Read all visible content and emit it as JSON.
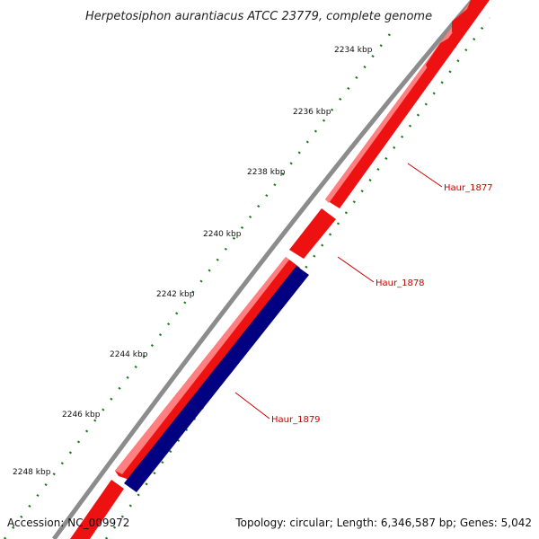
{
  "title": "Herpetosiphon aurantiacus ATCC 23779, complete genome",
  "ticks": [
    {
      "label": "2234 kbp"
    },
    {
      "label": "2236 kbp"
    },
    {
      "label": "2238 kbp"
    },
    {
      "label": "2240 kbp"
    },
    {
      "label": "2242 kbp"
    },
    {
      "label": "2244 kbp"
    },
    {
      "label": "2246 kbp"
    },
    {
      "label": "2248 kbp"
    }
  ],
  "genes": [
    {
      "name": "Haur_1877",
      "strand": "+",
      "color": "#ee1111"
    },
    {
      "name": "Haur_1878",
      "strand": "+",
      "color": "#ee1111"
    },
    {
      "name": "Haur_1879",
      "strand": "-",
      "color": "#000080"
    }
  ],
  "colors": {
    "forward": "#ee1111",
    "reverse": "#000080",
    "backbone": "#8c8c8c",
    "ticks": "#1a7a1a",
    "label": "#cc0000"
  },
  "footer": {
    "accession": "Accession: NC_009972",
    "summary": "Topology: circular; Length: 6,346,587 bp; Genes: 5,042"
  }
}
